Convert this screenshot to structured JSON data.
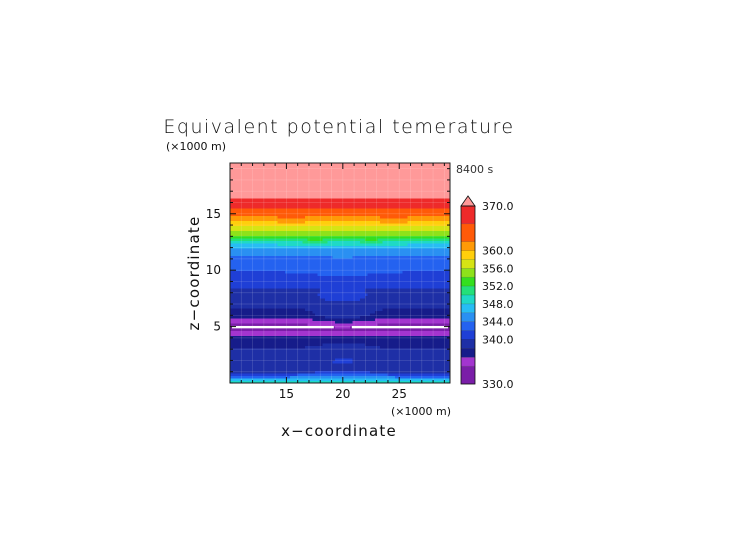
{
  "chart_data": {
    "type": "heatmap",
    "title": "Equivalent potential temerature",
    "time_label": "8400 s",
    "xlabel": "x−coordinate",
    "ylabel": "z−coordinate",
    "x_unit": "(×1000 m)",
    "z_unit": "(×1000 m)",
    "xlim": [
      10,
      29.5
    ],
    "zlim": [
      0,
      19.5
    ],
    "x_ticks": [
      15,
      20,
      25
    ],
    "z_ticks": [
      5,
      10,
      15
    ],
    "grid": true,
    "legend_position": "right",
    "colorbar": {
      "labels": [
        "370.0",
        "360.0",
        "356.0",
        "352.0",
        "348.0",
        "344.0",
        "340.0",
        "330.0"
      ],
      "label_values": [
        370,
        360,
        356,
        352,
        348,
        344,
        340,
        330
      ],
      "levels": [
        330,
        334,
        336,
        338,
        340,
        342,
        344,
        346,
        348,
        350,
        352,
        354,
        356,
        358,
        360,
        362,
        366,
        370
      ],
      "colors": [
        "#7a1ea8",
        "#a335cf",
        "#161c8a",
        "#1e2fa6",
        "#1f3fd6",
        "#2462f0",
        "#2a90f2",
        "#27bdf4",
        "#1fd9c6",
        "#23e079",
        "#34df1e",
        "#8ee21a",
        "#d6e414",
        "#ffcf0c",
        "#ff9a07",
        "#ff5a08",
        "#ee2a2a",
        "#ff9999"
      ],
      "extend": "max"
    },
    "profile": [
      {
        "z": 0.0,
        "value": 350
      },
      {
        "z": 0.25,
        "value": 347
      },
      {
        "z": 0.6,
        "value": 343
      },
      {
        "z": 1.0,
        "value": 339.5
      },
      {
        "z": 1.8,
        "value": 339
      },
      {
        "z": 2.6,
        "value": 338.5
      },
      {
        "z": 3.5,
        "value": 337.5
      },
      {
        "z": 4.3,
        "value": 335.5
      },
      {
        "z": 4.8,
        "value": 333
      },
      {
        "z": 5.3,
        "value": 334
      },
      {
        "z": 6.0,
        "value": 337
      },
      {
        "z": 7.0,
        "value": 338.5
      },
      {
        "z": 8.2,
        "value": 339.5
      },
      {
        "z": 9.0,
        "value": 341
      },
      {
        "z": 10.0,
        "value": 342
      },
      {
        "z": 11.0,
        "value": 343
      },
      {
        "z": 12.0,
        "value": 346
      },
      {
        "z": 12.6,
        "value": 350
      },
      {
        "z": 13.1,
        "value": 354
      },
      {
        "z": 13.7,
        "value": 357
      },
      {
        "z": 14.3,
        "value": 359.5
      },
      {
        "z": 15.0,
        "value": 363
      },
      {
        "z": 15.8,
        "value": 367
      },
      {
        "z": 16.5,
        "value": 370.5
      },
      {
        "z": 19.5,
        "value": 371
      }
    ],
    "center_x": 20
  }
}
